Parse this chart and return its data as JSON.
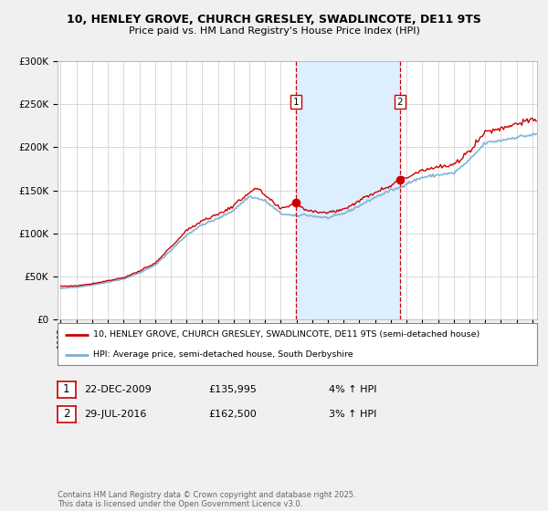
{
  "title1": "10, HENLEY GROVE, CHURCH GRESLEY, SWADLINCOTE, DE11 9TS",
  "title2": "Price paid vs. HM Land Registry's House Price Index (HPI)",
  "ylim": [
    0,
    300000
  ],
  "yticks": [
    0,
    50000,
    100000,
    150000,
    200000,
    250000,
    300000
  ],
  "ytick_labels": [
    "£0",
    "£50K",
    "£100K",
    "£150K",
    "£200K",
    "£250K",
    "£300K"
  ],
  "x_start_year": 1995,
  "x_end_year": 2025,
  "line1_color": "#cc0000",
  "line2_color": "#7ab0d4",
  "line1_label": "10, HENLEY GROVE, CHURCH GRESLEY, SWADLINCOTE, DE11 9TS (semi-detached house)",
  "line2_label": "HPI: Average price, semi-detached house, South Derbyshire",
  "vline1_date_decimal": 2009.97,
  "vline2_date_decimal": 2016.57,
  "vline_color": "#cc0000",
  "shade_color": "#ddeeff",
  "marker1_label": "1",
  "marker2_label": "2",
  "transaction1_price": 135995,
  "transaction1_date": 2009.97,
  "transaction2_price": 162500,
  "transaction2_date": 2016.57,
  "transaction1": [
    "1",
    "22-DEC-2009",
    "£135,995",
    "4% ↑ HPI"
  ],
  "transaction2": [
    "2",
    "29-JUL-2016",
    "£162,500",
    "3% ↑ HPI"
  ],
  "footer": "Contains HM Land Registry data © Crown copyright and database right 2025.\nThis data is licensed under the Open Government Licence v3.0.",
  "bg_color": "#f0f0f0",
  "plot_bg_color": "#ffffff",
  "grid_color": "#cccccc"
}
